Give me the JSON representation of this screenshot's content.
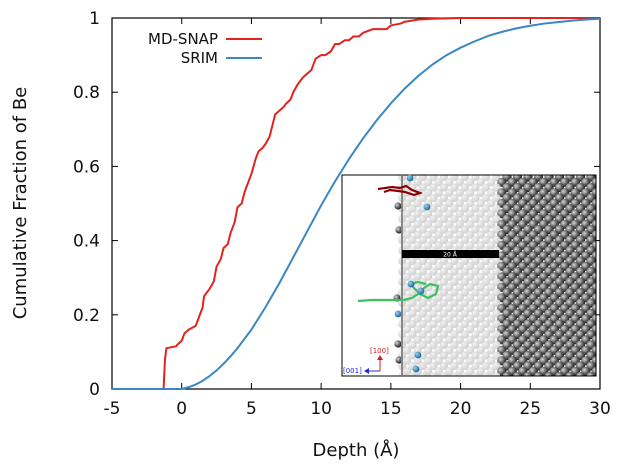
{
  "chart_data": {
    "type": "line",
    "title": "",
    "xlabel": "Depth (Å)",
    "ylabel": "Cumulative Fraction of Be",
    "xlim": [
      -5,
      30
    ],
    "ylim": [
      0,
      1
    ],
    "xticks": [
      -5,
      0,
      5,
      10,
      15,
      20,
      25,
      30
    ],
    "yticks": [
      0,
      0.2,
      0.4,
      0.6,
      0.8,
      1
    ],
    "grid": false,
    "legend": "top-left",
    "series": [
      {
        "name": "MD-SNAP",
        "color": "#e3231c",
        "x": [
          -5,
          -1.3,
          -1.2,
          -1.1,
          -0.4,
          -0.3,
          0.0,
          0.2,
          0.5,
          1.0,
          1.2,
          1.5,
          1.6,
          2.0,
          2.3,
          2.5,
          2.8,
          3.0,
          3.3,
          3.5,
          3.8,
          4.0,
          4.3,
          4.5,
          4.7,
          5.0,
          5.3,
          5.5,
          5.8,
          6.0,
          6.3,
          6.5,
          6.7,
          7.0,
          7.3,
          7.5,
          7.8,
          8.0,
          8.3,
          8.7,
          9.0,
          9.3,
          9.6,
          10.0,
          10.3,
          10.7,
          11.0,
          11.3,
          11.7,
          12.0,
          12.3,
          12.7,
          13.0,
          13.7,
          14.0,
          14.7,
          15.0,
          15.7,
          16.0,
          16.5,
          17.0,
          18.0,
          19.0,
          20.0,
          22.0,
          25.0,
          30.0
        ],
        "y": [
          0,
          0,
          0.08,
          0.11,
          0.115,
          0.12,
          0.13,
          0.15,
          0.16,
          0.17,
          0.19,
          0.22,
          0.25,
          0.27,
          0.29,
          0.33,
          0.35,
          0.38,
          0.39,
          0.42,
          0.45,
          0.49,
          0.5,
          0.53,
          0.55,
          0.58,
          0.62,
          0.64,
          0.65,
          0.66,
          0.68,
          0.71,
          0.74,
          0.75,
          0.76,
          0.77,
          0.78,
          0.8,
          0.82,
          0.84,
          0.85,
          0.86,
          0.89,
          0.9,
          0.9,
          0.91,
          0.93,
          0.93,
          0.94,
          0.94,
          0.95,
          0.95,
          0.96,
          0.97,
          0.97,
          0.97,
          0.98,
          0.985,
          0.99,
          0.993,
          0.996,
          0.998,
          0.999,
          1.0,
          1.0,
          1.0,
          1.0
        ]
      },
      {
        "name": "SRIM",
        "color": "#3a87c3",
        "x": [
          -5,
          0,
          0.5,
          1,
          1.5,
          2,
          2.5,
          3,
          3.5,
          4,
          5,
          6,
          7,
          8,
          9,
          10,
          11,
          12,
          13,
          14,
          15,
          16,
          17,
          18,
          19,
          20,
          21,
          22,
          23,
          24,
          25,
          26,
          27,
          28,
          29,
          30
        ],
        "y": [
          0,
          0,
          0.005,
          0.012,
          0.022,
          0.035,
          0.05,
          0.068,
          0.088,
          0.11,
          0.16,
          0.22,
          0.285,
          0.355,
          0.425,
          0.495,
          0.56,
          0.62,
          0.675,
          0.725,
          0.77,
          0.81,
          0.845,
          0.875,
          0.9,
          0.92,
          0.937,
          0.952,
          0.963,
          0.972,
          0.979,
          0.985,
          0.989,
          0.993,
          0.996,
          0.998
        ]
      }
    ],
    "inset": {
      "scale_label": "20 Å",
      "dir_100": "[100]",
      "dir_001": "[001]"
    }
  }
}
